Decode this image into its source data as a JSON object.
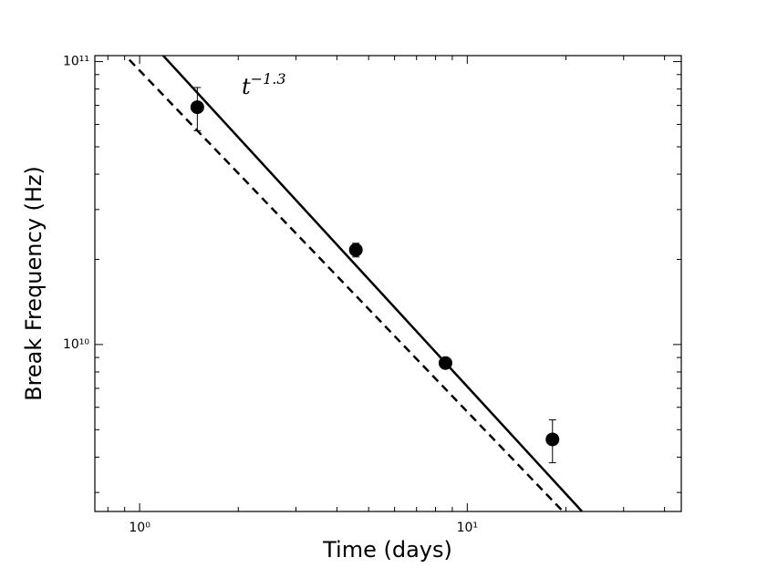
{
  "chart_data": {
    "type": "scatter",
    "xlabel": "Time (days)",
    "ylabel": "Break Frequency (Hz)",
    "annotation": {
      "text": "t",
      "sup": "−1.3"
    },
    "xlog": true,
    "ylog": true,
    "minor_ticks": true,
    "xlim": [
      0.73,
      45
    ],
    "ylim": [
      2570000000.0,
      105000000000.0
    ],
    "xticks": [
      {
        "value": 1,
        "label": "10⁰"
      },
      {
        "value": 10,
        "label": "10¹"
      }
    ],
    "yticks": [
      {
        "value": 10000000000,
        "label": "10¹⁰"
      },
      {
        "value": 100000000000,
        "label": "10¹¹"
      }
    ],
    "series": [
      {
        "color": "#000000",
        "x": [
          1.5,
          4.57,
          8.58,
          18.2
        ],
        "values": [
          69000000000.0,
          21600000000.0,
          8600000000.0,
          4620000000.0
        ],
        "errors": [
          12000000000.0,
          1200000000.0,
          300000000.0,
          800000000.0
        ]
      }
    ],
    "lines": [
      {
        "style": "solid",
        "color": "#000000",
        "x": [
          1.18,
          22.4
        ],
        "values": [
          105000000000.0,
          2570000000.0
        ]
      },
      {
        "style": "dashed",
        "color": "#000000",
        "x": [
          0.93,
          19.6
        ],
        "values": [
          101500000000.0,
          2570000000.0
        ]
      }
    ]
  }
}
